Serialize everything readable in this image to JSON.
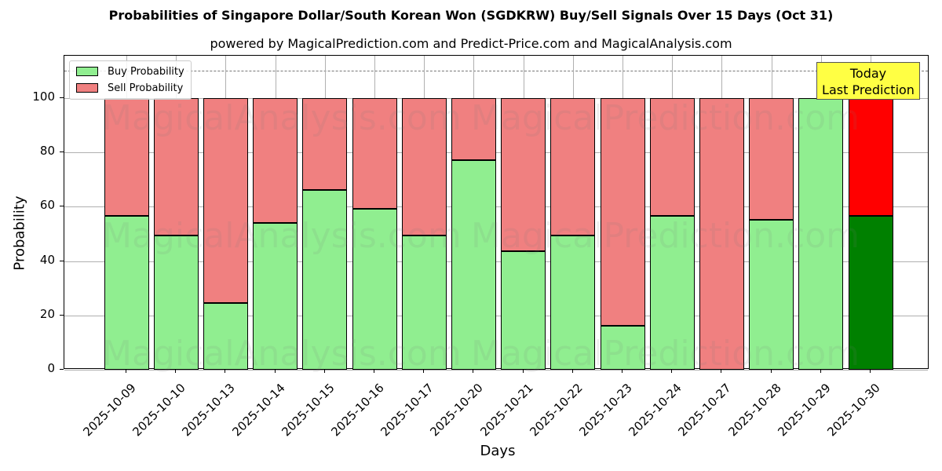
{
  "chart_data": {
    "type": "bar",
    "stacked": true,
    "title": "Probabilities of Singapore Dollar/South Korean Won (SGDKRW) Buy/Sell Signals Over 15 Days (Oct 31)",
    "subtitle": "powered by MagicalPrediction.com and Predict-Price.com and MagicalAnalysis.com",
    "xlabel": "Days",
    "ylabel": "Probability",
    "ylim": [
      0,
      115
    ],
    "yticks": [
      0,
      20,
      40,
      60,
      80,
      100
    ],
    "grid": true,
    "legend_position": "upper left",
    "reference_line": {
      "y": 110,
      "style": "dashed"
    },
    "categories": [
      "2025-10-09",
      "2025-10-10",
      "2025-10-13",
      "2025-10-14",
      "2025-10-15",
      "2025-10-16",
      "2025-10-17",
      "2025-10-20",
      "2025-10-21",
      "2025-10-22",
      "2025-10-23",
      "2025-10-24",
      "2025-10-27",
      "2025-10-28",
      "2025-10-29",
      "2025-10-30"
    ],
    "series": [
      {
        "name": "Buy Probability",
        "color": "#90ee90",
        "values": [
          56.6,
          49.4,
          24.6,
          54.0,
          66.2,
          59.2,
          49.4,
          77.2,
          43.6,
          49.4,
          16.2,
          56.6,
          0,
          55.2,
          100,
          56.6
        ]
      },
      {
        "name": "Sell Probability",
        "color": "#f08080",
        "values": [
          43.4,
          50.6,
          75.4,
          46.0,
          33.8,
          40.8,
          50.6,
          22.8,
          56.4,
          50.6,
          83.8,
          43.4,
          100,
          44.8,
          0,
          43.4
        ]
      }
    ],
    "highlight": {
      "index": 15,
      "buy_color": "#008000",
      "sell_color": "#ff0000"
    },
    "annotation": {
      "line1": "Today",
      "line2": "Last Prediction",
      "background": "#ffff44"
    },
    "watermarks": [
      "MagicalAnalysis.com",
      "MagicalPrediction.com"
    ]
  }
}
